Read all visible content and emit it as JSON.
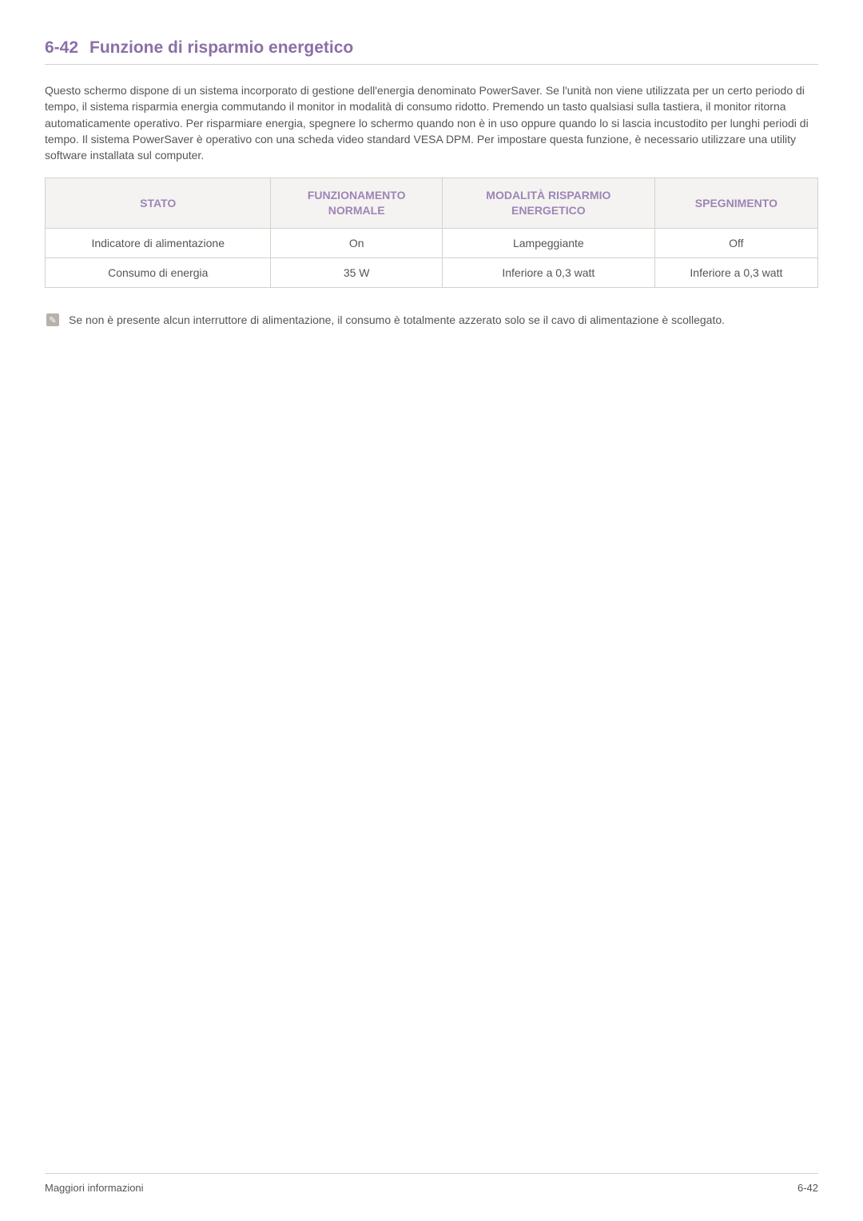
{
  "heading": {
    "number": "6-42",
    "title": "Funzione di risparmio energetico",
    "color": "#8b6fa8",
    "fontsize": 21
  },
  "paragraph": "Questo schermo dispone di un sistema incorporato di gestione dell'energia denominato PowerSaver. Se l'unità non viene utilizzata per un certo periodo di tempo, il sistema risparmia energia commutando il monitor in modalità di consumo ridotto. Premendo un tasto qualsiasi sulla tastiera, il monitor ritorna automaticamente operativo. Per risparmiare energia, spegnere lo schermo quando non è in uso oppure quando lo si lascia incustodito per lunghi periodi di tempo. Il sistema PowerSaver è operativo con una scheda video standard VESA DPM. Per impostare questa funzione, è necessario utilizzare una utility software installata sul computer.",
  "table": {
    "header_bg": "#f5f3f1",
    "header_color": "#9d85b5",
    "border_color": "#d5d0cc",
    "cell_color": "#555555",
    "columns": [
      "STATO",
      "FUNZIONAMENTO\nNORMALE",
      "MODALITÀ RISPARMIO\nENERGETICO",
      "SPEGNIMENTO"
    ],
    "rows": [
      [
        "Indicatore di alimentazione",
        "On",
        "Lampeggiante",
        "Off"
      ],
      [
        "Consumo di energia",
        "35 W",
        "Inferiore a 0,3 watt",
        "Inferiore a 0,3 watt"
      ]
    ]
  },
  "note": {
    "icon_bg": "#b7b1ab",
    "icon_glyph": "✎",
    "text": "Se non è presente alcun interruttore di alimentazione, il consumo è totalmente azzerato solo se il cavo di alimentazione è scollegato."
  },
  "footer": {
    "left": "Maggiori informazioni",
    "right": "6-42"
  },
  "page_bg": "#ffffff",
  "text_color": "#555555"
}
